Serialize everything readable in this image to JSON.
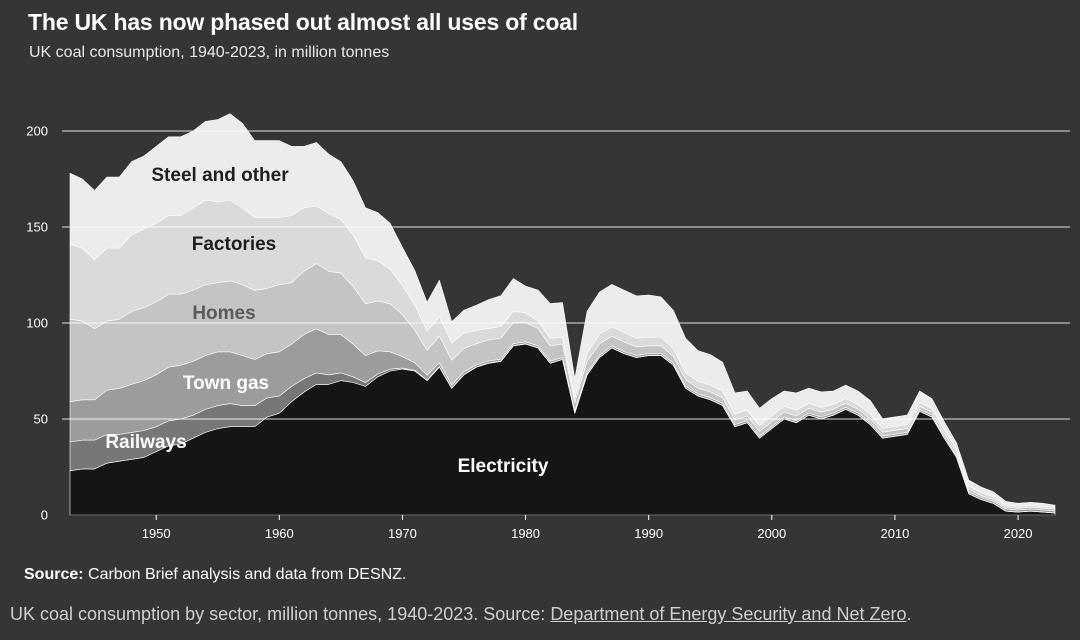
{
  "header": {
    "title": "The UK has now phased out almost all uses of coal",
    "subtitle": "UK coal consumption, 1940-2023, in million tonnes"
  },
  "footer": {
    "source_label": "Source:",
    "source_text": " Carbon Brief analysis and data from DESNZ."
  },
  "caption": {
    "text": "UK coal consumption by sector, million tonnes, 1940-2023. Source: ",
    "link_text": "Department of Energy Security and Net Zero",
    "end": "."
  },
  "colors": {
    "background": "#353535",
    "Electricity": "#151515",
    "Railways": "#777777",
    "Town gas": "#9c9c9c",
    "Homes": "#c4c4c4",
    "Factories": "#dadada",
    "Steel and other": "#ececec",
    "grid": "#ffffff"
  },
  "chart_data": {
    "type": "area",
    "stacked": true,
    "title": "The UK has now phased out almost all uses of coal",
    "subtitle": "UK coal consumption, 1940-2023, in million tonnes",
    "xlabel": "",
    "ylabel": "",
    "xlim": [
      1943,
      2023
    ],
    "ylim": [
      0,
      200
    ],
    "x_ticks": [
      1950,
      1960,
      1970,
      1980,
      1990,
      2000,
      2010,
      2020
    ],
    "y_ticks": [
      0,
      50,
      100,
      150,
      200
    ],
    "grid": "horizontal",
    "legend": "inline labels",
    "x": [
      1943,
      1944,
      1945,
      1946,
      1947,
      1948,
      1949,
      1950,
      1951,
      1952,
      1953,
      1954,
      1955,
      1956,
      1957,
      1958,
      1959,
      1960,
      1961,
      1962,
      1963,
      1964,
      1965,
      1966,
      1967,
      1968,
      1969,
      1970,
      1971,
      1972,
      1973,
      1974,
      1975,
      1976,
      1977,
      1978,
      1979,
      1980,
      1981,
      1982,
      1983,
      1984,
      1985,
      1986,
      1987,
      1988,
      1989,
      1990,
      1991,
      1992,
      1993,
      1994,
      1995,
      1996,
      1997,
      1998,
      1999,
      2000,
      2001,
      2002,
      2003,
      2004,
      2005,
      2006,
      2007,
      2008,
      2009,
      2010,
      2011,
      2012,
      2013,
      2014,
      2015,
      2016,
      2017,
      2018,
      2019,
      2020,
      2021,
      2022,
      2023
    ],
    "series": [
      {
        "name": "Electricity",
        "values": [
          23,
          24,
          24,
          27,
          28,
          29,
          30,
          33,
          36,
          37,
          40,
          43,
          45,
          46,
          46,
          46,
          51,
          53,
          59,
          64,
          68,
          68,
          70,
          69,
          67,
          72,
          75,
          76,
          75,
          70,
          77,
          66,
          73,
          77,
          79,
          80,
          88,
          89,
          87,
          79,
          81,
          53,
          73,
          82,
          87,
          84,
          82,
          83,
          83,
          78,
          66,
          62,
          60,
          57,
          46,
          48,
          40,
          45,
          50,
          48,
          52,
          50,
          52,
          55,
          52,
          47,
          40,
          41,
          42,
          54,
          51,
          40,
          30,
          11,
          8,
          6,
          2,
          1.5,
          2,
          1.5,
          1
        ]
      },
      {
        "name": "Railways",
        "values": [
          15,
          15,
          15,
          15,
          14,
          14,
          14,
          13,
          13,
          13,
          12,
          12,
          12,
          12,
          11,
          11,
          10,
          9,
          8,
          7,
          6,
          5,
          4,
          3,
          2,
          1.5,
          1,
          0.5,
          0.3,
          0.3,
          0.3,
          0.2,
          0.2,
          0.2,
          0.2,
          0.2,
          0.2,
          0.2,
          0.2,
          0.1,
          0.1,
          0.1,
          0.1,
          0.1,
          0.1,
          0.1,
          0.1,
          0.1,
          0.1,
          0.1,
          0.1,
          0.1,
          0.1,
          0.1,
          0.1,
          0.1,
          0.1,
          0.1,
          0.1,
          0.1,
          0.1,
          0.1,
          0.1,
          0.1,
          0.1,
          0.1,
          0.1,
          0.1,
          0.1,
          0.1,
          0.1,
          0.1,
          0.1,
          0.1,
          0.1,
          0.1,
          0.1,
          0.1,
          0.1,
          0.1,
          0.1
        ]
      },
      {
        "name": "Town gas",
        "values": [
          21,
          21,
          21,
          23,
          24,
          25,
          26,
          27,
          28,
          28,
          28,
          28,
          28,
          27,
          26,
          24,
          23,
          23,
          22,
          23,
          23,
          21,
          20,
          17,
          14,
          12,
          9,
          6,
          4,
          2.5,
          2,
          1.5,
          1.5,
          1,
          1,
          1,
          1,
          1,
          1,
          1,
          1,
          1,
          1,
          1,
          1,
          1,
          1,
          1,
          1,
          1,
          1,
          1,
          1,
          1,
          1,
          1,
          1,
          1,
          1,
          1,
          1,
          1,
          1,
          1,
          1,
          1,
          1,
          1,
          1,
          1,
          1,
          1,
          1,
          1,
          1,
          1,
          1,
          1,
          1,
          1,
          1
        ]
      },
      {
        "name": "Homes",
        "values": [
          43,
          41,
          37,
          36,
          36,
          38,
          38,
          38,
          38,
          37,
          37,
          37,
          36,
          37,
          37,
          36,
          34,
          35,
          32,
          33,
          34,
          33,
          32,
          30,
          27,
          26,
          25,
          22,
          17,
          13,
          14,
          13,
          12,
          11,
          11,
          11,
          11,
          10,
          9,
          8,
          7,
          4.5,
          6,
          6,
          5,
          5,
          4.5,
          4,
          4,
          3.5,
          3.5,
          3,
          3,
          3,
          2.5,
          2.5,
          2.5,
          2.5,
          2.5,
          2.5,
          2.5,
          2.5,
          2,
          2,
          2,
          2,
          2,
          2,
          2,
          1.5,
          1.5,
          1.5,
          1.5,
          1.5,
          1,
          1,
          1,
          1,
          1,
          1,
          1
        ]
      },
      {
        "name": "Factories",
        "values": [
          39,
          38,
          36,
          38,
          37,
          40,
          41,
          41,
          41,
          41,
          43,
          44,
          42,
          42,
          40,
          38,
          37,
          35,
          35,
          33,
          30,
          30,
          28,
          27,
          24,
          21,
          18,
          15,
          13,
          10,
          10,
          9,
          8,
          7,
          6,
          6,
          6,
          5,
          4,
          4,
          3.5,
          2.5,
          4,
          5,
          5,
          5,
          4.5,
          4.5,
          4.5,
          4,
          3.5,
          3.5,
          3.5,
          3.5,
          3,
          3,
          3,
          3,
          3,
          3,
          2.5,
          2.5,
          2.5,
          2.5,
          2.5,
          2.5,
          2,
          2,
          2,
          2,
          2,
          2,
          2,
          1.5,
          1.5,
          1.5,
          1,
          1,
          1,
          1,
          1
        ]
      },
      {
        "name": "Steel and other",
        "values": [
          37,
          36,
          36,
          37,
          37,
          38,
          38,
          40,
          41,
          41,
          40,
          41,
          43,
          45,
          44,
          40,
          40,
          40,
          36,
          32,
          33,
          31,
          30,
          28,
          26,
          25,
          24,
          20,
          18,
          15,
          19,
          11,
          12,
          13,
          15,
          16,
          17,
          14,
          16,
          18,
          18,
          10,
          22,
          22,
          22,
          22,
          22,
          22,
          21,
          20,
          18,
          16,
          16,
          15,
          11,
          10,
          9,
          9,
          8,
          9,
          8,
          8,
          7,
          7,
          7,
          7,
          5,
          5,
          5,
          6,
          5,
          4,
          3,
          3,
          3,
          2.5,
          2,
          1.5,
          1.5,
          1.5,
          1
        ]
      }
    ],
    "labels": [
      "Steel and other",
      "Factories",
      "Homes",
      "Town gas",
      "Railways",
      "Electricity"
    ]
  }
}
